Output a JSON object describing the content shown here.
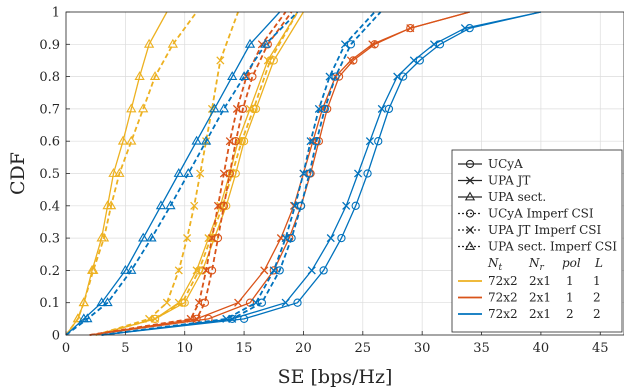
{
  "chart_data": {
    "type": "line",
    "xlabel": "SE [bps/Hz]",
    "ylabel": "CDF",
    "xlim": [
      0,
      47
    ],
    "ylim": [
      0,
      1
    ],
    "grid": true,
    "legend_position": "bottom-right",
    "x_ticks": [
      0,
      5,
      10,
      15,
      20,
      25,
      30,
      35,
      40,
      45
    ],
    "y_ticks": [
      0,
      0.1,
      0.2,
      0.3,
      0.4,
      0.5,
      0.6,
      0.7,
      0.8,
      0.9,
      1
    ],
    "legend": {
      "styles": [
        {
          "label": "UCyA",
          "marker": "circle",
          "dash": "solid"
        },
        {
          "label": "UPA JT",
          "marker": "cross",
          "dash": "solid"
        },
        {
          "label": "UPA sect.",
          "marker": "triangle",
          "dash": "solid"
        },
        {
          "label": "UCyA Imperf CSI",
          "marker": "circle",
          "dash": "dotted"
        },
        {
          "label": "UPA JT Imperf CSI",
          "marker": "cross",
          "dash": "dotted"
        },
        {
          "label": "UPA sect. Imperf CSI",
          "marker": "triangle",
          "dash": "dotted"
        }
      ],
      "header": {
        "Nt": "N",
        "Nt_sub": "t",
        "Nr": "N",
        "Nr_sub": "r",
        "pol": "pol",
        "L": "L"
      },
      "configs": [
        {
          "Nt": "72x2",
          "Nr": "2x1",
          "pol": "1",
          "L": "1",
          "color": "#EDB120"
        },
        {
          "Nt": "72x2",
          "Nr": "2x1",
          "pol": "1",
          "L": "2",
          "color": "#D95319"
        },
        {
          "Nt": "72x2",
          "Nr": "2x1",
          "pol": "2",
          "L": "2",
          "color": "#0072BD"
        }
      ]
    },
    "series": [
      {
        "config": 0,
        "type": "UCyA",
        "dash": "solid",
        "marker": "circle",
        "x": [
          2.5,
          7.5,
          10,
          11.5,
          12.5,
          13.5,
          14.3,
          15,
          16,
          17.5,
          20
        ],
        "y": [
          0,
          0.05,
          0.1,
          0.2,
          0.3,
          0.4,
          0.5,
          0.6,
          0.7,
          0.85,
          1
        ]
      },
      {
        "config": 0,
        "type": "UPA JT",
        "dash": "solid",
        "marker": "cross",
        "x": [
          2.5,
          7.5,
          9.5,
          11,
          12,
          13,
          13.8,
          14.5,
          15.5,
          17,
          19.5
        ],
        "y": [
          0,
          0.05,
          0.1,
          0.2,
          0.3,
          0.4,
          0.5,
          0.6,
          0.7,
          0.85,
          1
        ]
      },
      {
        "config": 0,
        "type": "UPA sect.",
        "dash": "solid",
        "marker": "triangle",
        "x": [
          0,
          1,
          1.5,
          2.2,
          3,
          3.5,
          4,
          4.8,
          5.5,
          6.2,
          7,
          8.5
        ],
        "y": [
          0,
          0.05,
          0.1,
          0.2,
          0.3,
          0.4,
          0.5,
          0.6,
          0.7,
          0.8,
          0.9,
          1
        ]
      },
      {
        "config": 0,
        "type": "UCyA Imperf CSI",
        "dash": "dotted",
        "marker": "circle",
        "x": [
          2.5,
          7.5,
          9.8,
          11.2,
          12.2,
          13.2,
          14,
          14.8,
          15.8,
          17.2,
          19.5
        ],
        "y": [
          0,
          0.05,
          0.1,
          0.2,
          0.3,
          0.4,
          0.5,
          0.6,
          0.7,
          0.85,
          1
        ]
      },
      {
        "config": 0,
        "type": "UPA JT Imperf CSI",
        "dash": "dotted",
        "marker": "cross",
        "x": [
          2.5,
          7,
          8.5,
          9.5,
          10.2,
          10.8,
          11.3,
          11.8,
          12.3,
          13,
          14.5
        ],
        "y": [
          0,
          0.05,
          0.1,
          0.2,
          0.3,
          0.4,
          0.5,
          0.6,
          0.7,
          0.85,
          1
        ]
      },
      {
        "config": 0,
        "type": "UPA sect. Imperf CSI",
        "dash": "dotted",
        "marker": "triangle",
        "x": [
          0,
          1,
          1.5,
          2.3,
          3.2,
          3.8,
          4.5,
          5.5,
          6.5,
          7.5,
          9,
          11
        ],
        "y": [
          0,
          0.05,
          0.1,
          0.2,
          0.3,
          0.4,
          0.5,
          0.6,
          0.7,
          0.8,
          0.9,
          1
        ]
      },
      {
        "config": 1,
        "type": "UCyA",
        "dash": "solid",
        "marker": "circle",
        "x": [
          2,
          12,
          15.5,
          17.5,
          18.8,
          19.8,
          20.6,
          21.3,
          22,
          23,
          24.2,
          26,
          29,
          34
        ],
        "y": [
          0,
          0.05,
          0.1,
          0.2,
          0.3,
          0.4,
          0.5,
          0.6,
          0.7,
          0.8,
          0.85,
          0.9,
          0.95,
          1
        ]
      },
      {
        "config": 1,
        "type": "UPA JT",
        "dash": "solid",
        "marker": "cross",
        "x": [
          2,
          11,
          14.5,
          16.7,
          18.1,
          19.2,
          20,
          20.8,
          21.6,
          22.7,
          24,
          25.8,
          29,
          34
        ],
        "y": [
          0,
          0.05,
          0.1,
          0.2,
          0.3,
          0.4,
          0.5,
          0.6,
          0.7,
          0.8,
          0.85,
          0.9,
          0.95,
          1
        ]
      },
      {
        "config": 1,
        "type": "UCyA Imperf CSI",
        "dash": "dotted",
        "marker": "circle",
        "x": [
          2,
          11,
          11.7,
          12.3,
          12.8,
          13.3,
          13.8,
          14.3,
          14.9,
          15.7,
          17,
          19
        ],
        "y": [
          0,
          0.05,
          0.1,
          0.2,
          0.3,
          0.4,
          0.5,
          0.6,
          0.7,
          0.8,
          0.9,
          1
        ]
      },
      {
        "config": 1,
        "type": "UPA JT Imperf CSI",
        "dash": "dotted",
        "marker": "cross",
        "x": [
          2,
          10.5,
          11.2,
          11.8,
          12.3,
          12.8,
          13.3,
          13.8,
          14.4,
          15.2,
          16.5,
          18.5
        ],
        "y": [
          0,
          0.05,
          0.1,
          0.2,
          0.3,
          0.4,
          0.5,
          0.6,
          0.7,
          0.8,
          0.9,
          1
        ]
      },
      {
        "config": 2,
        "type": "UCyA",
        "dash": "solid",
        "marker": "circle",
        "x": [
          3,
          15,
          19.5,
          21.7,
          23.2,
          24.4,
          25.4,
          26.3,
          27.2,
          28.4,
          29.8,
          31.5,
          34,
          40
        ],
        "y": [
          0,
          0.05,
          0.1,
          0.2,
          0.3,
          0.4,
          0.5,
          0.6,
          0.7,
          0.8,
          0.85,
          0.9,
          0.95,
          1
        ]
      },
      {
        "config": 2,
        "type": "UPA JT",
        "dash": "solid",
        "marker": "cross",
        "x": [
          3,
          14,
          18.5,
          20.7,
          22.3,
          23.6,
          24.6,
          25.6,
          26.6,
          27.9,
          29.3,
          31,
          33.6,
          40
        ],
        "y": [
          0,
          0.05,
          0.1,
          0.2,
          0.3,
          0.4,
          0.5,
          0.6,
          0.7,
          0.8,
          0.85,
          0.9,
          0.95,
          1
        ]
      },
      {
        "config": 2,
        "type": "UPA sect.",
        "dash": "solid",
        "marker": "triangle",
        "x": [
          0,
          1.5,
          3,
          5,
          6.5,
          8,
          9.5,
          11,
          12.5,
          14,
          15.5,
          18
        ],
        "y": [
          0,
          0.05,
          0.1,
          0.2,
          0.3,
          0.4,
          0.5,
          0.6,
          0.7,
          0.8,
          0.9,
          1
        ]
      },
      {
        "config": 2,
        "type": "UCyA Imperf CSI",
        "dash": "dotted",
        "marker": "circle",
        "x": [
          3,
          14,
          16.5,
          18,
          19,
          19.8,
          20.5,
          21.1,
          21.8,
          22.7,
          24,
          26.5
        ],
        "y": [
          0,
          0.05,
          0.1,
          0.2,
          0.3,
          0.4,
          0.5,
          0.6,
          0.7,
          0.8,
          0.9,
          1
        ]
      },
      {
        "config": 2,
        "type": "UPA JT Imperf CSI",
        "dash": "dotted",
        "marker": "cross",
        "x": [
          3,
          13.5,
          16,
          17.5,
          18.5,
          19.3,
          20,
          20.6,
          21.3,
          22.2,
          23.5,
          26
        ],
        "y": [
          0,
          0.05,
          0.1,
          0.2,
          0.3,
          0.4,
          0.5,
          0.6,
          0.7,
          0.8,
          0.9,
          1
        ]
      },
      {
        "config": 2,
        "type": "UPA sect. Imperf CSI",
        "dash": "dotted",
        "marker": "triangle",
        "x": [
          0,
          1.8,
          3.5,
          5.5,
          7.2,
          8.8,
          10.3,
          11.8,
          13.3,
          15,
          16.8,
          19.5
        ],
        "y": [
          0,
          0.05,
          0.1,
          0.2,
          0.3,
          0.4,
          0.5,
          0.6,
          0.7,
          0.8,
          0.9,
          1
        ]
      }
    ]
  }
}
